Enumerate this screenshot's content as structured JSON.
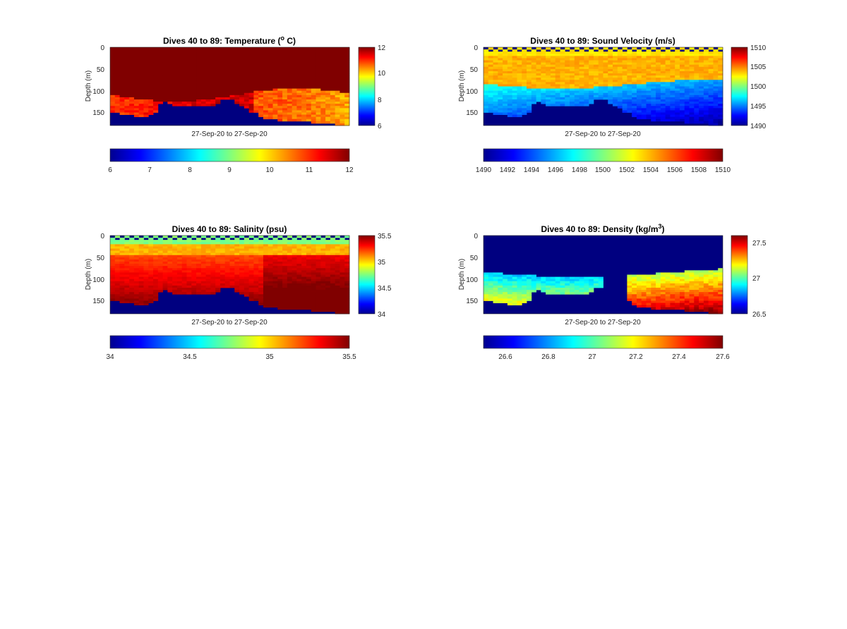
{
  "chart_data": [
    {
      "type": "heatmap",
      "title": "Dives 40 to 89: Temperature (",
      "title_sup": "o",
      "title_tail": " C)",
      "ylabel": "Depth (m)",
      "xlabel": "27-Sep-20 to 27-Sep-20",
      "y_ticks": [
        "0",
        "50",
        "100",
        "150"
      ],
      "ylim": [
        0,
        180
      ],
      "y_reversed": true,
      "dives": [
        40,
        89
      ],
      "side_colorbar": {
        "ticks": [
          "12",
          "10",
          "8",
          "6"
        ],
        "range": [
          6,
          12
        ]
      },
      "horizontal_colorbar": {
        "ticks": [
          "6",
          "7",
          "8",
          "9",
          "10",
          "11",
          "12"
        ],
        "range": [
          6,
          12
        ]
      },
      "upper_value": 12,
      "lower_value": 10.5,
      "bottom_depth_profile": [
        152,
        152,
        154,
        156,
        156,
        158,
        160,
        160,
        155,
        148,
        130,
        125,
        130,
        133,
        135,
        135,
        134,
        133,
        133,
        134,
        135,
        136,
        132,
        120,
        118,
        122,
        128,
        133,
        140,
        148,
        152,
        160,
        165,
        166,
        167,
        168,
        168,
        169,
        170,
        170,
        172,
        172,
        173,
        174,
        175,
        176,
        177,
        178,
        180,
        182
      ]
    },
    {
      "type": "heatmap",
      "title": "Dives 40 to 89: Sound Velocity (m/s)",
      "ylabel": "Depth (m)",
      "xlabel": "27-Sep-20 to 27-Sep-20",
      "y_ticks": [
        "0",
        "50",
        "100",
        "150"
      ],
      "ylim": [
        0,
        180
      ],
      "y_reversed": true,
      "dives": [
        40,
        89
      ],
      "side_colorbar": {
        "ticks": [
          "1510",
          "1505",
          "1500",
          "1495",
          "1490"
        ],
        "range": [
          1490,
          1510
        ]
      },
      "horizontal_colorbar": {
        "ticks": [
          "1490",
          "1492",
          "1494",
          "1496",
          "1498",
          "1500",
          "1502",
          "1504",
          "1506",
          "1508",
          "1510"
        ],
        "range": [
          1490,
          1510
        ]
      },
      "surface_value": 1503,
      "mid_value": 1504,
      "deep_value": 1498,
      "bottom_depth_profile": [
        152,
        152,
        154,
        156,
        156,
        158,
        160,
        160,
        155,
        148,
        130,
        125,
        130,
        133,
        135,
        135,
        134,
        133,
        133,
        134,
        135,
        136,
        132,
        120,
        118,
        122,
        128,
        133,
        140,
        148,
        152,
        160,
        165,
        166,
        167,
        168,
        168,
        169,
        170,
        170,
        172,
        172,
        173,
        174,
        175,
        176,
        177,
        178,
        180,
        182
      ]
    },
    {
      "type": "heatmap",
      "title": "Dives 40 to 89: Salinity (psu)",
      "ylabel": "Depth (m)",
      "xlabel": "27-Sep-20 to 27-Sep-20",
      "y_ticks": [
        "0",
        "50",
        "100",
        "150"
      ],
      "ylim": [
        0,
        180
      ],
      "y_reversed": true,
      "dives": [
        40,
        89
      ],
      "side_colorbar": {
        "ticks": [
          "35.5",
          "35",
          "34.5",
          "34"
        ],
        "range": [
          34,
          35.5
        ]
      },
      "horizontal_colorbar": {
        "ticks": [
          "34",
          "34.5",
          "35",
          "35.5"
        ],
        "range": [
          34,
          35.5
        ]
      },
      "surface_value": 34.75,
      "mid_value": 35.2,
      "deep_value": 35.35,
      "bottom_depth_profile": [
        152,
        152,
        154,
        156,
        156,
        158,
        160,
        160,
        155,
        148,
        130,
        125,
        130,
        133,
        135,
        135,
        134,
        133,
        133,
        134,
        135,
        136,
        132,
        120,
        118,
        122,
        128,
        133,
        140,
        148,
        152,
        160,
        165,
        166,
        167,
        168,
        168,
        169,
        170,
        170,
        172,
        172,
        173,
        174,
        175,
        176,
        177,
        178,
        180,
        182
      ]
    },
    {
      "type": "heatmap",
      "title": "Dives 40 to 89: Density (kg/m",
      "title_sup": "3",
      "title_tail": ")",
      "ylabel": "Depth (m)",
      "xlabel": "27-Sep-20 to 27-Sep-20",
      "y_ticks": [
        "0",
        "50",
        "100",
        "150"
      ],
      "ylim": [
        0,
        180
      ],
      "y_reversed": true,
      "dives": [
        40,
        89
      ],
      "side_colorbar": {
        "ticks": [
          "27.5",
          "27",
          "26.5"
        ],
        "range": [
          26.5,
          27.6
        ]
      },
      "horizontal_colorbar": {
        "ticks": [
          "26.6",
          "26.8",
          "27",
          "27.2",
          "27.4",
          "27.6"
        ],
        "range": [
          26.5,
          27.6
        ]
      },
      "background_value": 26.5,
      "deep_value": 26.95,
      "bottom_depth_profile": [
        152,
        152,
        154,
        156,
        156,
        158,
        160,
        160,
        155,
        148,
        130,
        125,
        130,
        133,
        135,
        135,
        134,
        133,
        133,
        134,
        135,
        136,
        132,
        120,
        118,
        122,
        128,
        133,
        140,
        148,
        152,
        160,
        165,
        166,
        167,
        168,
        168,
        169,
        170,
        170,
        172,
        172,
        173,
        174,
        175,
        176,
        177,
        178,
        180,
        182
      ]
    }
  ]
}
